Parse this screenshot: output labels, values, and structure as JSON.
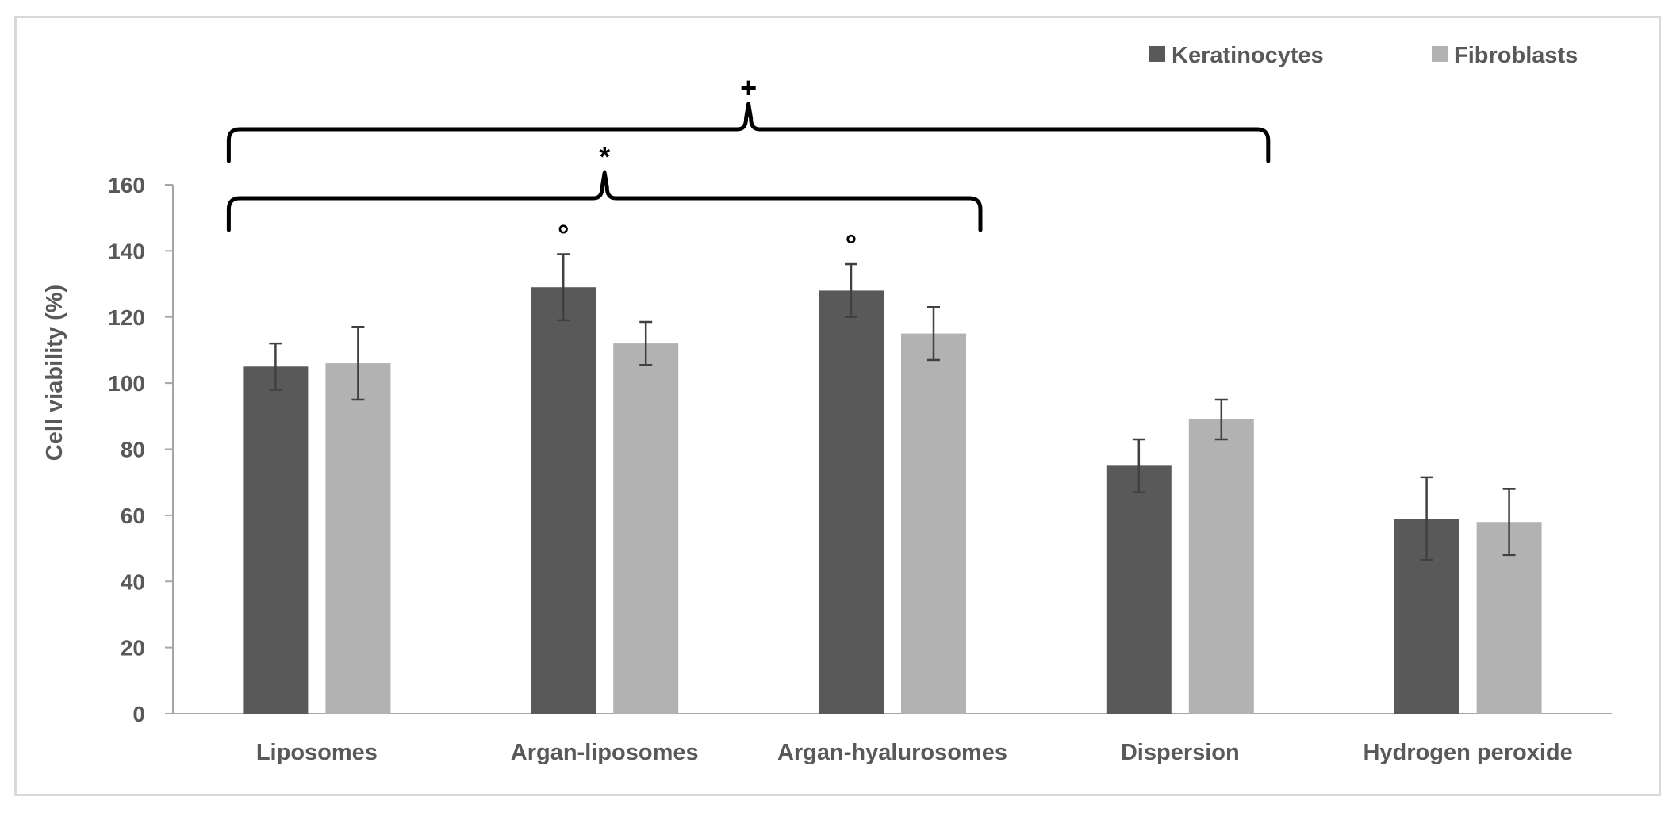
{
  "chart_data": {
    "type": "bar",
    "title": "",
    "xlabel": "",
    "ylabel": "Cell viability (%)",
    "ylim": [
      0,
      160
    ],
    "yticks": [
      0,
      20,
      40,
      60,
      80,
      100,
      120,
      140,
      160
    ],
    "categories": [
      "Liposomes",
      "Argan-liposomes",
      "Argan-hyalurosomes",
      "Dispersion",
      "Hydrogen peroxide"
    ],
    "series": [
      {
        "name": "Keratinocytes",
        "color": "#595959",
        "values": [
          105,
          129,
          128,
          75,
          59
        ],
        "errors": [
          7,
          10,
          8,
          8,
          12.5
        ],
        "markers": [
          "",
          "°",
          "°",
          "",
          ""
        ]
      },
      {
        "name": "Fibroblasts",
        "color": "#b2b2b2",
        "values": [
          106,
          112,
          115,
          89,
          58
        ],
        "errors": [
          11,
          6.5,
          8,
          6,
          10
        ],
        "markers": [
          "",
          "",
          "",
          "",
          ""
        ]
      }
    ],
    "legend": {
      "position": "top-right"
    },
    "brackets": [
      {
        "symbol": "+",
        "from": "Liposomes",
        "to": "Dispersion"
      },
      {
        "symbol": "*",
        "from": "Liposomes",
        "to": "Argan-hyalurosomes"
      }
    ]
  }
}
